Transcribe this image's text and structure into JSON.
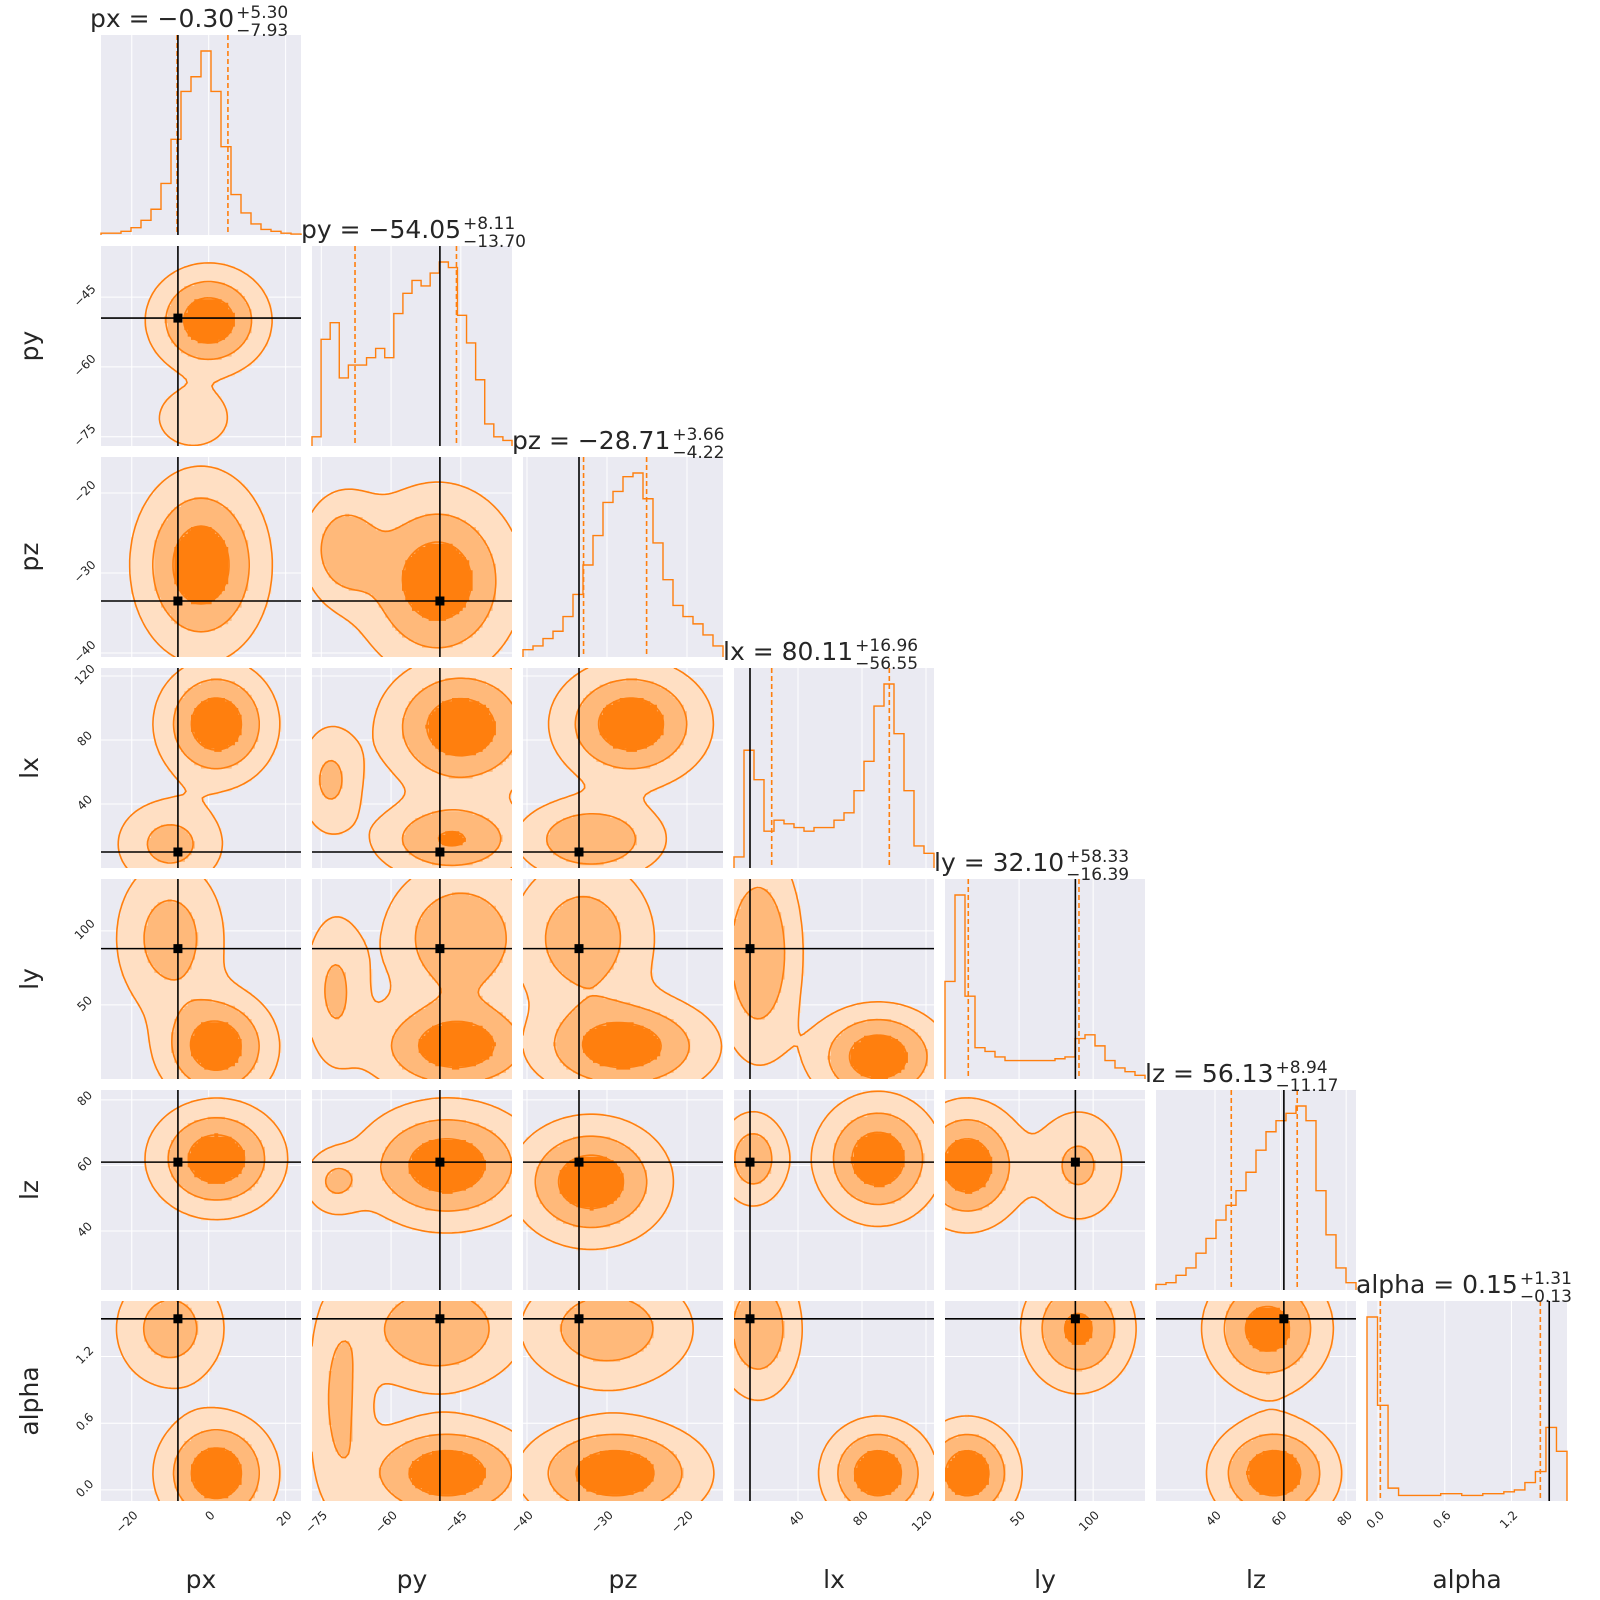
{
  "chart_data": {
    "type": "corner",
    "parameters": [
      {
        "name": "px",
        "axis_label": "px",
        "range": [
          -28,
          24
        ],
        "truth": -8,
        "q16": -8.23,
        "q84": 5.0,
        "title_name": "px",
        "title_value": "−0.30",
        "err_plus": "+5.30",
        "err_minus": "−7.93",
        "ticks": [
          -20,
          0,
          20
        ],
        "tick_labels": [
          "−20",
          "0",
          "20"
        ]
      },
      {
        "name": "py",
        "axis_label": "py",
        "range": [
          -77,
          -34
        ],
        "truth": -49.5,
        "q16": -67.75,
        "q84": -45.94,
        "title_name": "py",
        "title_value": "−54.05",
        "err_plus": "+8.11",
        "err_minus": "−13.70",
        "ticks": [
          -75,
          -60,
          -45
        ],
        "tick_labels": [
          "−75",
          "−60",
          "−45"
        ]
      },
      {
        "name": "pz",
        "axis_label": "pz",
        "range": [
          -40.5,
          -15.5
        ],
        "truth": -33.5,
        "q16": -32.93,
        "q84": -25.05,
        "title_name": "pz",
        "title_value": "−28.71",
        "err_plus": "+3.66",
        "err_minus": "−4.22",
        "ticks": [
          -40,
          -30,
          -20
        ],
        "tick_labels": [
          "−40",
          "−30",
          "−20"
        ]
      },
      {
        "name": "lx",
        "axis_label": "lx",
        "range": [
          0,
          125
        ],
        "truth": 10,
        "q16": 23.56,
        "q84": 97.07,
        "title_name": "lx",
        "title_value": "80.11",
        "err_plus": "+16.96",
        "err_minus": "−56.55",
        "ticks": [
          40,
          80,
          120
        ],
        "tick_labels": [
          "40",
          "80",
          "120"
        ]
      },
      {
        "name": "ly",
        "axis_label": "ly",
        "range": [
          0,
          135
        ],
        "truth": 88,
        "q16": 15.71,
        "q84": 90.43,
        "title_name": "ly",
        "title_value": "32.10",
        "err_plus": "+58.33",
        "err_minus": "−16.39",
        "ticks": [
          50,
          100
        ],
        "tick_labels": [
          "50",
          "100"
        ]
      },
      {
        "name": "lz",
        "axis_label": "lz",
        "range": [
          22,
          83
        ],
        "truth": 61,
        "q16": 44.96,
        "q84": 65.07,
        "title_name": "lz",
        "title_value": "56.13",
        "err_plus": "+8.94",
        "err_minus": "−11.17",
        "ticks": [
          40,
          60,
          80
        ],
        "tick_labels": [
          "40",
          "60",
          "80"
        ]
      },
      {
        "name": "alpha",
        "axis_label": "alpha",
        "range": [
          -0.1,
          1.7
        ],
        "truth": 1.54,
        "q16": 0.02,
        "q84": 1.46,
        "title_name": "alpha",
        "title_value": "0.15",
        "err_plus": "+1.31",
        "err_minus": "−0.13",
        "ticks": [
          0.0,
          0.6,
          1.2
        ],
        "tick_labels": [
          "0.0",
          "0.6",
          "1.2"
        ]
      }
    ],
    "histograms": [
      [
        0.01,
        0.01,
        0.02,
        0.04,
        0.08,
        0.14,
        0.28,
        0.52,
        0.78,
        0.86,
        1.0,
        0.78,
        0.48,
        0.22,
        0.12,
        0.06,
        0.03,
        0.02,
        0.01,
        0.005
      ],
      [
        0.05,
        0.58,
        0.67,
        0.37,
        0.44,
        0.44,
        0.48,
        0.53,
        0.48,
        0.72,
        0.83,
        0.9,
        0.87,
        0.94,
        1.0,
        0.97,
        0.71,
        0.56,
        0.36,
        0.12,
        0.05,
        0.03
      ],
      [
        0.04,
        0.06,
        0.1,
        0.14,
        0.22,
        0.34,
        0.5,
        0.66,
        0.84,
        0.9,
        0.98,
        1.0,
        0.86,
        0.62,
        0.42,
        0.28,
        0.22,
        0.18,
        0.12,
        0.06
      ],
      [
        0.06,
        0.64,
        0.48,
        0.2,
        0.26,
        0.24,
        0.22,
        0.2,
        0.22,
        0.22,
        0.26,
        0.3,
        0.42,
        0.58,
        0.88,
        1.0,
        0.73,
        0.42,
        0.12,
        0.08
      ],
      [
        0.53,
        1.0,
        0.45,
        0.17,
        0.15,
        0.12,
        0.1,
        0.1,
        0.1,
        0.1,
        0.1,
        0.11,
        0.12,
        0.22,
        0.24,
        0.18,
        0.1,
        0.06,
        0.04,
        0.02
      ],
      [
        0.03,
        0.04,
        0.08,
        0.12,
        0.2,
        0.28,
        0.38,
        0.46,
        0.54,
        0.64,
        0.76,
        0.86,
        0.92,
        0.96,
        1.0,
        0.92,
        0.54,
        0.3,
        0.12,
        0.04
      ],
      [
        1.0,
        0.52,
        0.07,
        0.03,
        0.03,
        0.03,
        0.03,
        0.04,
        0.04,
        0.03,
        0.03,
        0.04,
        0.04,
        0.05,
        0.06,
        0.1,
        0.16,
        0.4,
        0.27
      ]
    ],
    "joint_modes": [
      {
        "row": 1,
        "col": 0,
        "modes": [
          [
            0,
            -50,
            8,
            6,
            1
          ],
          [
            -4,
            -71,
            6,
            4,
            0.35
          ]
        ]
      },
      {
        "row": 2,
        "col": 0,
        "modes": [
          [
            -2,
            -29,
            9,
            6,
            1
          ]
        ]
      },
      {
        "row": 2,
        "col": 1,
        "modes": [
          [
            -50,
            -31,
            9,
            6,
            1
          ],
          [
            -70,
            -27,
            5,
            4,
            0.6
          ]
        ]
      },
      {
        "row": 3,
        "col": 0,
        "modes": [
          [
            2,
            90,
            8,
            20,
            1
          ],
          [
            -10,
            15,
            8,
            16,
            0.5
          ]
        ]
      },
      {
        "row": 3,
        "col": 1,
        "modes": [
          [
            -45,
            88,
            9,
            22,
            1
          ],
          [
            -47,
            18,
            9,
            14,
            0.75
          ],
          [
            -73,
            55,
            4,
            20,
            0.45
          ]
        ]
      },
      {
        "row": 3,
        "col": 2,
        "modes": [
          [
            -27,
            90,
            5,
            20,
            1
          ],
          [
            -32,
            18,
            5,
            14,
            0.7
          ]
        ]
      },
      {
        "row": 4,
        "col": 0,
        "modes": [
          [
            2,
            22,
            8,
            20,
            1
          ],
          [
            -10,
            95,
            8,
            30,
            0.55
          ]
        ]
      },
      {
        "row": 4,
        "col": 1,
        "modes": [
          [
            -46,
            22,
            10,
            18,
            1
          ],
          [
            -45,
            95,
            9,
            28,
            0.7
          ],
          [
            -72,
            60,
            4,
            30,
            0.45
          ]
        ]
      },
      {
        "row": 4,
        "col": 2,
        "modes": [
          [
            -28,
            22,
            6,
            18,
            1
          ],
          [
            -33,
            95,
            5,
            30,
            0.6
          ]
        ]
      },
      {
        "row": 4,
        "col": 3,
        "modes": [
          [
            90,
            15,
            22,
            18,
            1
          ],
          [
            15,
            85,
            15,
            40,
            0.7
          ]
        ]
      },
      {
        "row": 5,
        "col": 0,
        "modes": [
          [
            2,
            62,
            9,
            9,
            1
          ]
        ]
      },
      {
        "row": 5,
        "col": 1,
        "modes": [
          [
            -48,
            60,
            10,
            10,
            1
          ],
          [
            -72,
            55,
            4,
            6,
            0.4
          ]
        ]
      },
      {
        "row": 5,
        "col": 2,
        "modes": [
          [
            -32,
            55,
            5,
            10,
            1
          ]
        ]
      },
      {
        "row": 5,
        "col": 3,
        "modes": [
          [
            90,
            62,
            20,
            10,
            1
          ],
          [
            12,
            62,
            12,
            8,
            0.6
          ]
        ]
      },
      {
        "row": 5,
        "col": 4,
        "modes": [
          [
            15,
            60,
            20,
            10,
            1
          ],
          [
            90,
            60,
            18,
            10,
            0.45
          ]
        ]
      },
      {
        "row": 6,
        "col": 0,
        "modes": [
          [
            2,
            0.15,
            8,
            0.28,
            1
          ],
          [
            -10,
            1.45,
            8,
            0.3,
            0.55
          ]
        ]
      },
      {
        "row": 6,
        "col": 1,
        "modes": [
          [
            -48,
            0.15,
            10,
            0.25,
            1
          ],
          [
            -50,
            1.45,
            10,
            0.3,
            0.7
          ],
          [
            -71,
            0.8,
            4,
            0.6,
            0.45
          ]
        ]
      },
      {
        "row": 6,
        "col": 2,
        "modes": [
          [
            -29,
            0.15,
            6,
            0.25,
            1
          ],
          [
            -30,
            1.45,
            6,
            0.3,
            0.6
          ]
        ]
      },
      {
        "row": 6,
        "col": 3,
        "modes": [
          [
            90,
            0.15,
            18,
            0.25,
            1
          ],
          [
            15,
            1.45,
            15,
            0.35,
            0.65
          ]
        ]
      },
      {
        "row": 6,
        "col": 4,
        "modes": [
          [
            15,
            0.15,
            18,
            0.25,
            1
          ],
          [
            90,
            1.45,
            20,
            0.3,
            0.8
          ]
        ]
      },
      {
        "row": 6,
        "col": 5,
        "modes": [
          [
            58,
            0.15,
            10,
            0.25,
            1
          ],
          [
            56,
            1.45,
            10,
            0.3,
            0.9
          ]
        ]
      }
    ],
    "colors": {
      "plot_bg": "#eaeaf2",
      "grid": "#ffffff",
      "hist_line": "#ff7f0e",
      "quantile_line": "#ff7f0e",
      "contour_line": "#ff7f0e",
      "fill_levels": [
        "#ffdfc3",
        "#ffb97a",
        "#ff7f0e"
      ],
      "truth": "#000000",
      "text": "#262626"
    },
    "grid": true,
    "legend": "none"
  }
}
